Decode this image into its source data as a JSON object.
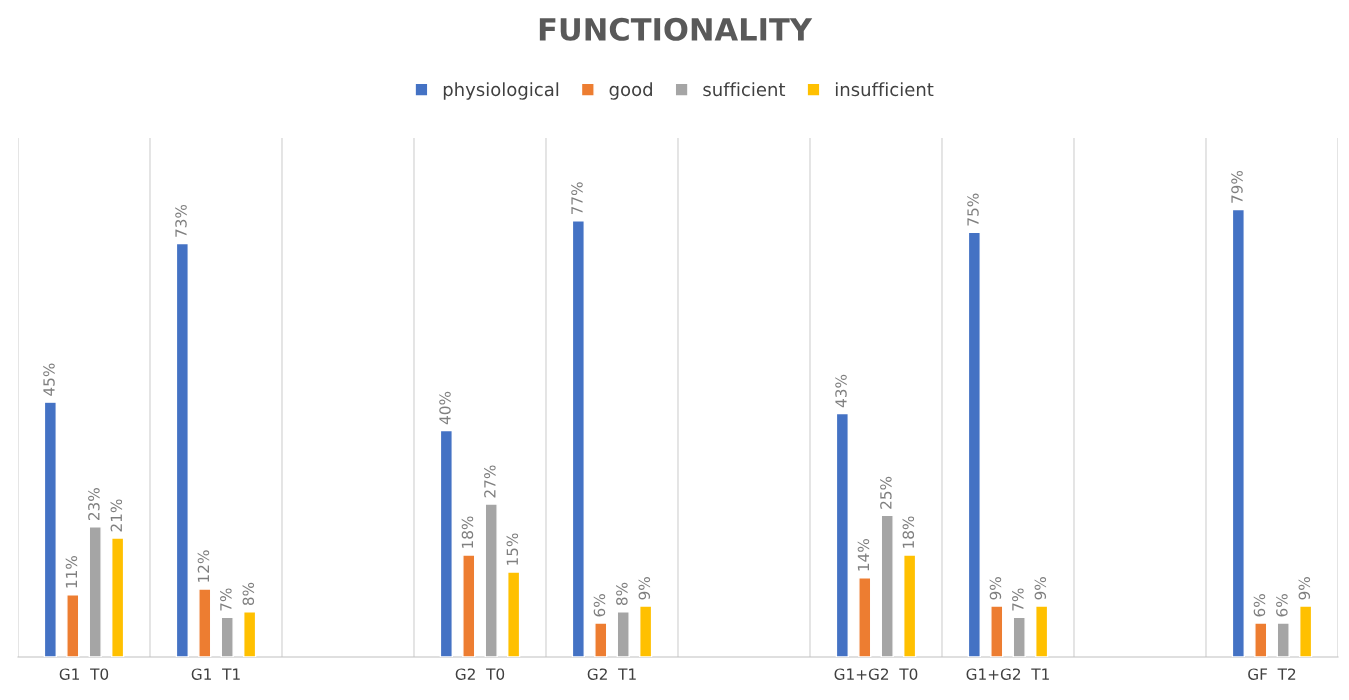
{
  "chart_data": {
    "type": "bar",
    "title": "FUNCTIONALITY",
    "categories": [
      "G1  T0",
      "G1  T1",
      null,
      "G2  T0",
      "G2  T1",
      null,
      "G1+G2  T0",
      "G1+G2  T1",
      null,
      "GF  T2"
    ],
    "series": [
      {
        "name": "physiological",
        "color": "#4472c4",
        "values": [
          45,
          73,
          null,
          40,
          77,
          null,
          43,
          75,
          null,
          79
        ],
        "value_labels": [
          "45%",
          "73%",
          null,
          "40%",
          "77%",
          null,
          "43%",
          "75%",
          null,
          "79%"
        ]
      },
      {
        "name": "good",
        "color": "#ed7d31",
        "values": [
          11,
          12,
          null,
          18,
          6,
          null,
          14,
          9,
          null,
          6
        ],
        "value_labels": [
          "11%",
          "12%",
          null,
          "18%",
          "6%",
          null,
          "14%",
          "9%",
          null,
          "6%"
        ]
      },
      {
        "name": "sufficient",
        "color": "#a5a5a5",
        "values": [
          23,
          7,
          null,
          27,
          8,
          null,
          25,
          7,
          null,
          6
        ],
        "value_labels": [
          "23%",
          "7%",
          null,
          "27%",
          "8%",
          null,
          "25%",
          "7%",
          null,
          "6%"
        ]
      },
      {
        "name": "insufficient",
        "color": "#ffc000",
        "values": [
          21,
          8,
          null,
          15,
          9,
          null,
          18,
          9,
          null,
          9
        ],
        "value_labels": [
          "21%",
          "8%",
          null,
          "15%",
          "9%",
          null,
          "18%",
          "9%",
          null,
          "9%"
        ]
      }
    ],
    "legend": "top",
    "grid": "x"
  }
}
